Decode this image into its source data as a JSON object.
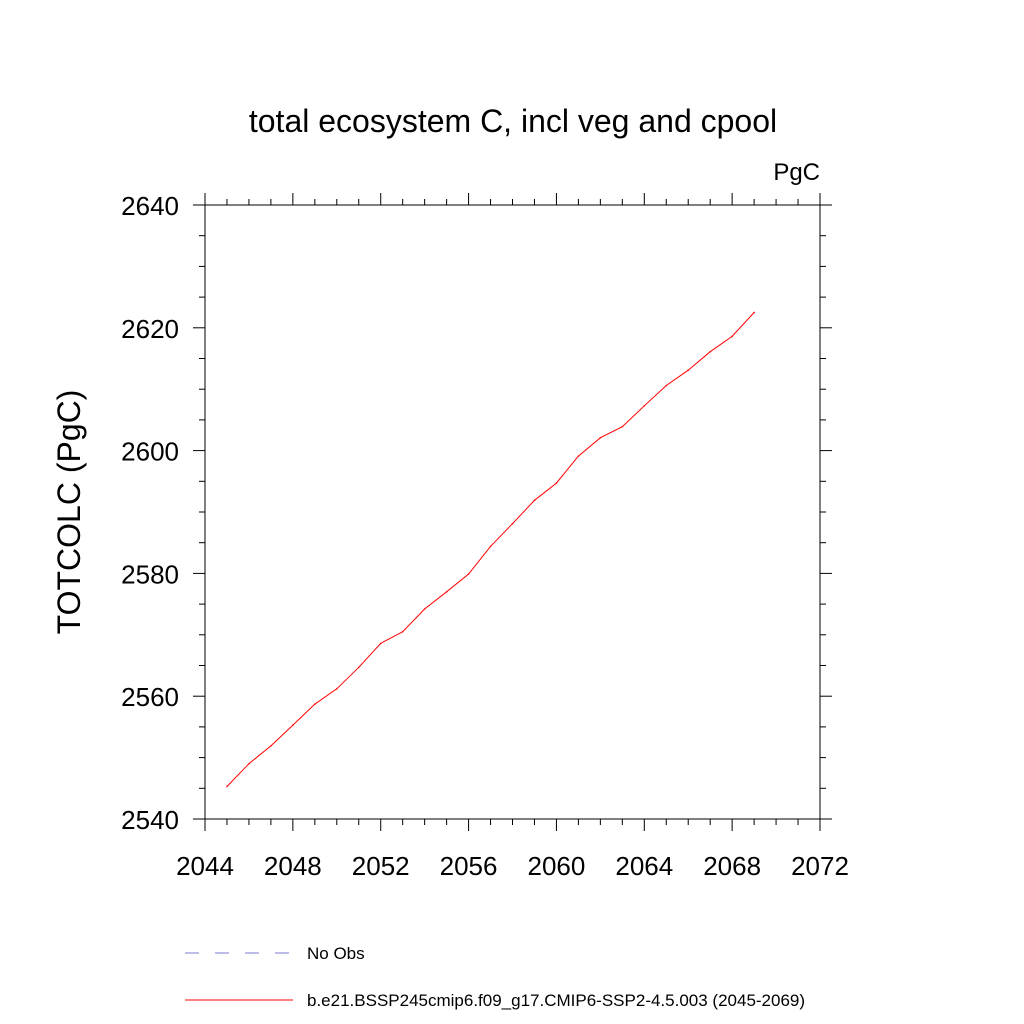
{
  "chart_data": {
    "type": "line",
    "title": "total ecosystem C, incl veg and cpool",
    "units": "PgC",
    "ylabel": "TOTCOLC  (PgC)",
    "xlabel": "",
    "xlim": [
      2044,
      2072
    ],
    "ylim": [
      2540,
      2640
    ],
    "x_major_ticks": [
      2044,
      2048,
      2052,
      2056,
      2060,
      2064,
      2068,
      2072
    ],
    "y_major_ticks": [
      2540,
      2560,
      2580,
      2600,
      2620,
      2640
    ],
    "grid": false,
    "legend_position": "bottom",
    "series": [
      {
        "name": "b.e21.BSSP245cmip6.f09_g17.CMIP6-SSP2-4.5.003 (2045-2069)",
        "color": "#ff0000",
        "style": "solid",
        "x": [
          2045,
          2046,
          2047,
          2048,
          2049,
          2050,
          2051,
          2052,
          2053,
          2054,
          2055,
          2056,
          2057,
          2058,
          2059,
          2060,
          2061,
          2062,
          2063,
          2064,
          2065,
          2066,
          2067,
          2068,
          2069
        ],
        "y": [
          2545.3,
          2549.0,
          2551.9,
          2555.3,
          2558.7,
          2561.2,
          2564.7,
          2568.6,
          2570.5,
          2574.2,
          2577.0,
          2579.9,
          2584.4,
          2588.1,
          2591.9,
          2594.7,
          2599.1,
          2602.1,
          2603.9,
          2607.3,
          2610.6,
          2613.1,
          2616.1,
          2618.6,
          2622.5
        ]
      }
    ],
    "legend": [
      {
        "label": "No Obs",
        "color": "#7b7bcf",
        "style": "dashed"
      },
      {
        "label": "b.e21.BSSP245cmip6.f09_g17.CMIP6-SSP2-4.5.003 (2045-2069)",
        "color": "#ff0000",
        "style": "solid"
      }
    ]
  }
}
